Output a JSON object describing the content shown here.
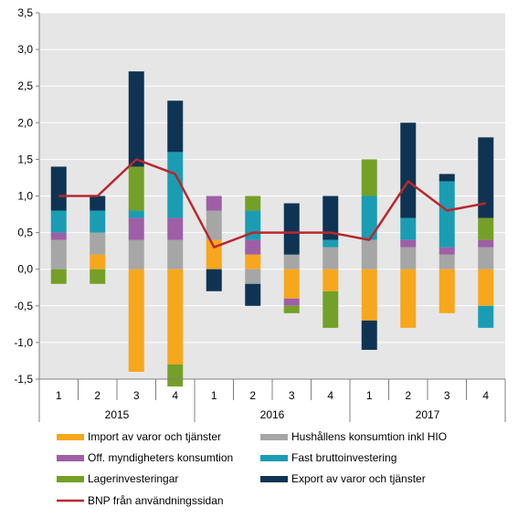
{
  "chart_data": {
    "type": "bar",
    "stacked": true,
    "categories": [
      "1",
      "2",
      "3",
      "4",
      "1",
      "2",
      "3",
      "4",
      "1",
      "2",
      "3",
      "4"
    ],
    "years": [
      {
        "label": "2015",
        "quarters": 4
      },
      {
        "label": "2016",
        "quarters": 4
      },
      {
        "label": "2017",
        "quarters": 4
      }
    ],
    "ylim": [
      -1.5,
      3.5
    ],
    "yticks": [
      "3,5",
      "3,0",
      "2,5",
      "2,0",
      "1,5",
      "1,0",
      "0,5",
      "0,0",
      "-0,5",
      "-1,0",
      "-1,5"
    ],
    "ytick_values": [
      3.5,
      3.0,
      2.5,
      2.0,
      1.5,
      1.0,
      0.5,
      0.0,
      -0.5,
      -1.0,
      -1.5
    ],
    "plot_background": "#e6e6e6",
    "grid": true,
    "legend_position": "bottom",
    "series": [
      {
        "name": "Import av varor och tjänster",
        "color": "#f7a71c",
        "values": [
          0,
          0.2,
          -1.4,
          -1.3,
          0.4,
          0.2,
          -0.4,
          -0.3,
          -0.7,
          -0.8,
          -0.6,
          -0.5
        ]
      },
      {
        "name": "Hushållens konsumtion inkl HIO",
        "color": "#a6a6a6",
        "values": [
          0.4,
          0.3,
          0.4,
          0.4,
          0.4,
          -0.2,
          0.2,
          0.3,
          0.4,
          0.3,
          0.2,
          0.3
        ]
      },
      {
        "name": "Off. myndigheters konsumtion",
        "color": "#9e5fa6",
        "values": [
          0.1,
          0,
          0.3,
          0.3,
          0.2,
          0.2,
          -0.1,
          0,
          0,
          0.1,
          0.1,
          0.1
        ]
      },
      {
        "name": "Fast bruttoinvestering",
        "color": "#1a9db3",
        "values": [
          0.3,
          0.3,
          0.1,
          0.9,
          0,
          0.4,
          0,
          0.1,
          0.6,
          0.3,
          0.9,
          -0.3
        ]
      },
      {
        "name": "Lagerinvesteringar",
        "color": "#74a028",
        "values": [
          -0.2,
          -0.2,
          0.6,
          -0.3,
          0,
          0.2,
          -0.1,
          -0.5,
          0.5,
          0,
          0,
          0.3
        ]
      },
      {
        "name": "Export av varor och tjänster",
        "color": "#0f3453",
        "values": [
          0.6,
          0.2,
          1.3,
          0.7,
          -0.3,
          -0.3,
          0.7,
          0.6,
          -0.4,
          1.3,
          0.1,
          1.1
        ]
      }
    ],
    "line": {
      "name": "BNP från användningssidan",
      "color": "#b8282e",
      "values": [
        1.0,
        1.0,
        1.5,
        1.3,
        0.3,
        0.5,
        0.5,
        0.5,
        0.4,
        1.2,
        0.8,
        0.9
      ]
    }
  }
}
